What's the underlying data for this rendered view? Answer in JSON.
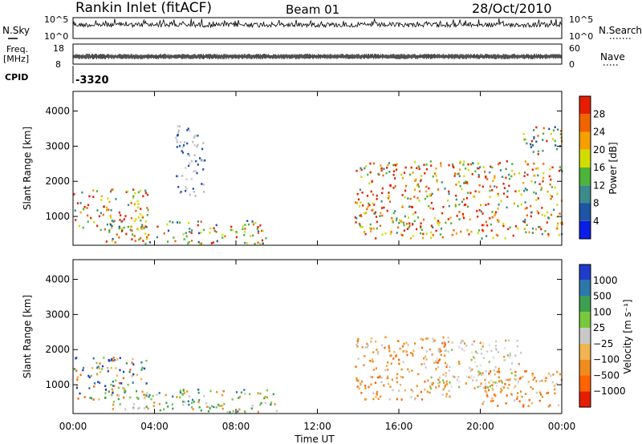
{
  "header": {
    "station": "Rankin Inlet (fitACF)",
    "beam": "Beam 01",
    "date": "28/Oct/2010"
  },
  "side_labels": {
    "nsky": "N.Sky",
    "freq_line1": "Freq.",
    "freq_line2": "[MHz]",
    "cpid": "CPID",
    "nsearch": "N.Search",
    "nave": "Nave"
  },
  "status_axes": {
    "nsky_ticks": [
      "10^5",
      "10^0"
    ],
    "nsearch_ticks": [
      "10^5",
      "10^0"
    ],
    "freq_ticks": [
      "18",
      "8"
    ],
    "nave_ticks": [
      "60",
      "0"
    ],
    "cpid_value": "-3320"
  },
  "chart_data": [
    {
      "type": "heatmap",
      "name": "power",
      "ylabel": "Slant Range [km]",
      "xlabel": "Time UT",
      "x_ticks": [
        "00:00",
        "04:00",
        "08:00",
        "12:00",
        "16:00",
        "20:00",
        "00:00"
      ],
      "x_range_hours": [
        0,
        24
      ],
      "y_ticks": [
        1000,
        2000,
        3000,
        4000
      ],
      "ylim": [
        180,
        4560
      ],
      "colorbar": {
        "label": "Power [dB]",
        "tick_labels": [
          "4",
          "8",
          "12",
          "16",
          "20",
          "24",
          "28"
        ],
        "colors": [
          "#0a1ee6",
          "#1e55a5",
          "#3c8a8c",
          "#4cb43a",
          "#d2dc00",
          "#f5a000",
          "#f06400",
          "#e61e00"
        ]
      },
      "echo_regions": [
        {
          "t_start": 0.0,
          "t_end": 3.7,
          "r_start": 600,
          "r_end": 1800,
          "level": "high"
        },
        {
          "t_start": 1.5,
          "t_end": 9.5,
          "r_start": 250,
          "r_end": 900,
          "level": "mixed"
        },
        {
          "t_start": 13.8,
          "t_end": 24.0,
          "r_start": 400,
          "r_end": 2600,
          "level": "high"
        },
        {
          "t_start": 5.0,
          "t_end": 6.5,
          "r_start": 1600,
          "r_end": 3600,
          "level": "low"
        },
        {
          "t_start": 22.0,
          "t_end": 24.0,
          "r_start": 2800,
          "r_end": 3600,
          "level": "mixed"
        }
      ]
    },
    {
      "type": "heatmap",
      "name": "velocity",
      "ylabel": "Slant Range [km]",
      "xlabel": "Time UT",
      "x_ticks": [
        "00:00",
        "04:00",
        "08:00",
        "12:00",
        "16:00",
        "20:00",
        "00:00"
      ],
      "x_range_hours": [
        0,
        24
      ],
      "y_ticks": [
        1000,
        2000,
        3000,
        4000
      ],
      "ylim": [
        180,
        4560
      ],
      "colorbar": {
        "label": "Velocity [m s⁻¹]",
        "tick_labels": [
          "1000",
          "500",
          "100",
          "25",
          "−25",
          "−100",
          "−500",
          "−1000"
        ],
        "colors": [
          "#1e3cc8",
          "#2d78aa",
          "#3ca050",
          "#78c83c",
          "#c8c8c8",
          "#f0b450",
          "#f08c1e",
          "#ff6400",
          "#e61e00"
        ]
      },
      "echo_regions": [
        {
          "t_start": 0.0,
          "t_end": 3.7,
          "r_start": 600,
          "r_end": 1800,
          "level": "toward"
        },
        {
          "t_start": 1.5,
          "t_end": 10.0,
          "r_start": 250,
          "r_end": 900,
          "level": "mixed"
        },
        {
          "t_start": 13.8,
          "t_end": 18.5,
          "r_start": 600,
          "r_end": 2400,
          "level": "away"
        },
        {
          "t_start": 17.5,
          "t_end": 22.0,
          "r_start": 900,
          "r_end": 2300,
          "level": "slow"
        },
        {
          "t_start": 20.0,
          "t_end": 24.0,
          "r_start": 400,
          "r_end": 1500,
          "level": "away"
        }
      ]
    }
  ]
}
